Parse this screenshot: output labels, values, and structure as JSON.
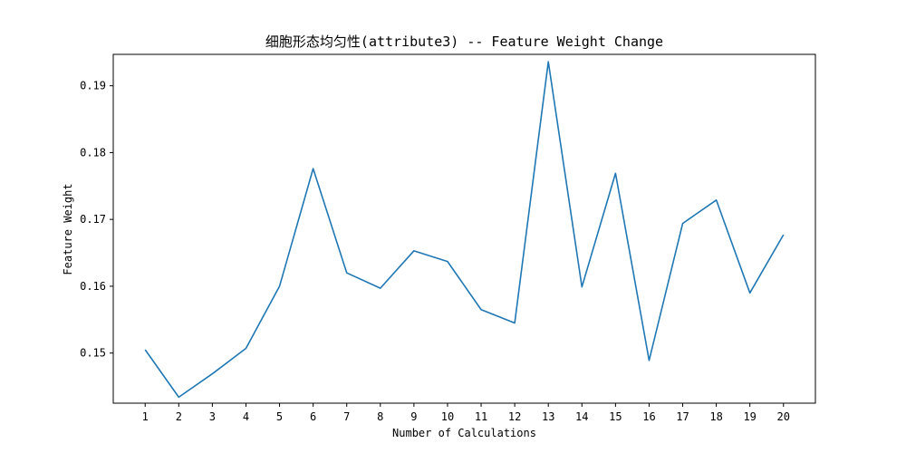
{
  "chart_data": {
    "type": "line",
    "title": "细胞形态均匀性(attribute3) -- Feature Weight Change",
    "xlabel": "Number of Calculations",
    "ylabel": "Feature Weight",
    "x": [
      1,
      2,
      3,
      4,
      5,
      6,
      7,
      8,
      9,
      10,
      11,
      12,
      13,
      14,
      15,
      16,
      17,
      18,
      19,
      20
    ],
    "series": [
      {
        "values": [
          0.1505,
          0.1434,
          0.1469,
          0.1507,
          0.16,
          0.1776,
          0.162,
          0.1597,
          0.1653,
          0.1637,
          0.1565,
          0.1545,
          0.1936,
          0.1599,
          0.1769,
          0.1489,
          0.1694,
          0.1729,
          0.159,
          0.1677
        ],
        "color": "#1f77b4"
      }
    ],
    "x_ticks": [
      "1",
      "2",
      "3",
      "4",
      "5",
      "6",
      "7",
      "8",
      "9",
      "10",
      "11",
      "12",
      "13",
      "14",
      "15",
      "16",
      "17",
      "18",
      "19",
      "20"
    ],
    "y_ticks": [
      "0.15",
      "0.16",
      "0.17",
      "0.18",
      "0.19"
    ],
    "xlim": [
      0.05,
      20.95
    ],
    "ylim": [
      0.1425,
      0.1947
    ],
    "grid": false
  }
}
